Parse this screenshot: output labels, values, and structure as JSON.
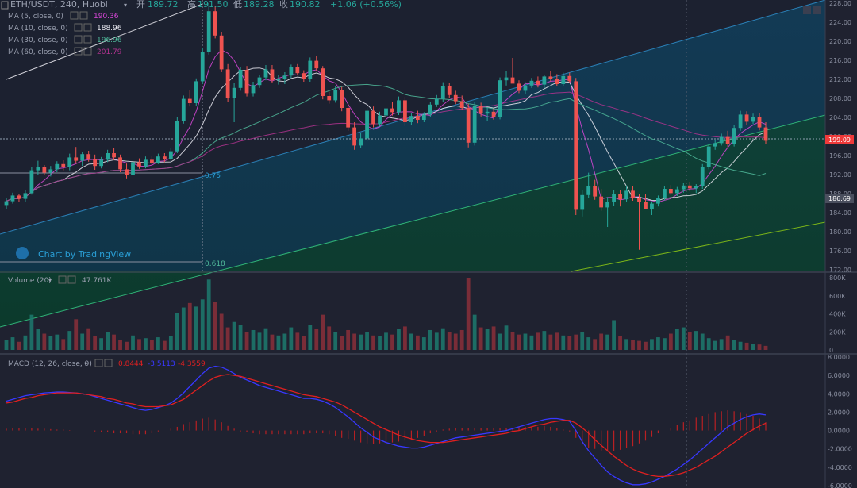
{
  "header": {
    "symbol": "ETH/USDT, 240, Huobi",
    "open_label": "开",
    "open": "189.72",
    "high_label": "高",
    "high": "191.50",
    "low_label": "低",
    "low": "189.28",
    "close_label": "收",
    "close": "190.82",
    "change": "+1.06 (+0.56%)"
  },
  "ma_legend": [
    {
      "label": "MA (5, close, 0)",
      "value": "190.36",
      "color": "#d946d9"
    },
    {
      "label": "MA (10, close, 0)",
      "value": "188.96",
      "color": "#e8e8f0"
    },
    {
      "label": "MA (30, close, 0)",
      "value": "196.96",
      "color": "#4fb89a"
    },
    {
      "label": "MA (60, close, 0)",
      "value": "201.79",
      "color": "#b0338f"
    }
  ],
  "volume_legend": {
    "label": "Volume (20)",
    "value": "47.761K"
  },
  "macd_legend": {
    "label": "MACD (12, 26, close, 9)",
    "v1": "0.8444",
    "v2": "-3.5113",
    "v3": "-4.3559"
  },
  "watermark": "Chart by TradingView",
  "price_badges": {
    "current": "199.09",
    "secondary": "186.69"
  },
  "colors": {
    "up": "#26a69a",
    "down": "#ef5350",
    "background": "#1f2230",
    "macd_line": "#3838ff",
    "signal_line": "#e02020"
  },
  "chart_data": [
    {
      "type": "candlestick",
      "symbol": "ETH/USDT",
      "interval": "240",
      "exchange": "Huobi",
      "y_ticks": [
        "228.00",
        "224.00",
        "220.00",
        "216.00",
        "212.00",
        "208.00",
        "204.00",
        "200.00",
        "196.00",
        "192.00",
        "188.00",
        "184.00",
        "180.00",
        "176.00",
        "172.00"
      ],
      "ylim": [
        172,
        228
      ],
      "fib_labels": [
        {
          "text": "0.75"
        },
        {
          "text": "0.618"
        }
      ],
      "candles": [
        [
          185.6,
          187.0,
          184.8,
          186.4
        ],
        [
          186.4,
          188.2,
          185.9,
          187.6
        ],
        [
          187.6,
          188.0,
          186.3,
          186.9
        ],
        [
          186.9,
          188.7,
          186.2,
          188.1
        ],
        [
          188.1,
          193.6,
          187.8,
          192.9
        ],
        [
          192.9,
          194.9,
          192.0,
          193.6
        ],
        [
          193.6,
          194.0,
          191.9,
          192.4
        ],
        [
          192.4,
          193.8,
          191.6,
          193.1
        ],
        [
          193.1,
          194.8,
          192.5,
          194.2
        ],
        [
          194.2,
          195.0,
          192.9,
          193.5
        ],
        [
          193.5,
          196.4,
          192.9,
          195.6
        ],
        [
          195.6,
          197.8,
          194.3,
          194.9
        ],
        [
          194.9,
          196.8,
          193.8,
          196.3
        ],
        [
          196.3,
          197.0,
          194.7,
          195.3
        ],
        [
          195.3,
          196.2,
          193.0,
          193.8
        ],
        [
          193.8,
          195.7,
          193.3,
          195.1
        ],
        [
          195.1,
          197.2,
          194.6,
          196.5
        ],
        [
          196.5,
          197.5,
          195.0,
          195.6
        ],
        [
          195.6,
          196.2,
          192.5,
          193.1
        ],
        [
          193.1,
          194.3,
          191.2,
          192.0
        ],
        [
          192.0,
          195.2,
          191.6,
          194.6
        ],
        [
          194.6,
          195.4,
          193.2,
          193.7
        ],
        [
          193.7,
          195.8,
          193.3,
          195.1
        ],
        [
          195.1,
          196.0,
          193.9,
          194.5
        ],
        [
          194.5,
          196.4,
          194.2,
          195.8
        ],
        [
          195.8,
          196.5,
          194.6,
          195.2
        ],
        [
          195.2,
          197.5,
          194.8,
          196.9
        ],
        [
          196.9,
          204.0,
          196.5,
          203.2
        ],
        [
          203.2,
          208.6,
          202.7,
          207.9
        ],
        [
          207.9,
          209.8,
          206.3,
          207.0
        ],
        [
          207.0,
          212.2,
          206.5,
          211.6
        ],
        [
          211.6,
          218.5,
          211.0,
          217.7
        ],
        [
          217.7,
          228.0,
          217.2,
          226.3
        ],
        [
          226.3,
          227.5,
          220.6,
          221.2
        ],
        [
          221.2,
          222.0,
          213.5,
          214.1
        ],
        [
          214.1,
          215.2,
          207.2,
          208.1
        ],
        [
          208.1,
          211.3,
          203.0,
          210.2
        ],
        [
          210.2,
          214.6,
          209.6,
          214.0
        ],
        [
          214.0,
          214.8,
          208.4,
          209.1
        ],
        [
          209.1,
          211.5,
          208.4,
          210.8
        ],
        [
          210.8,
          212.9,
          210.2,
          212.4
        ],
        [
          212.4,
          215.0,
          211.8,
          214.1
        ],
        [
          214.1,
          215.0,
          211.3,
          211.8
        ],
        [
          211.8,
          213.0,
          210.9,
          212.1
        ],
        [
          212.1,
          213.5,
          211.0,
          212.8
        ],
        [
          212.8,
          215.1,
          212.3,
          214.5
        ],
        [
          214.5,
          215.2,
          212.9,
          213.3
        ],
        [
          213.3,
          213.9,
          211.5,
          212.1
        ],
        [
          212.1,
          216.6,
          211.5,
          215.9
        ],
        [
          215.9,
          216.9,
          213.7,
          214.3
        ],
        [
          214.3,
          214.8,
          207.8,
          208.5
        ],
        [
          208.5,
          209.4,
          206.9,
          207.6
        ],
        [
          207.6,
          210.5,
          207.1,
          209.8
        ],
        [
          209.8,
          210.4,
          205.3,
          206.0
        ],
        [
          206.0,
          206.9,
          201.2,
          201.9
        ],
        [
          201.9,
          203.0,
          197.2,
          198.1
        ],
        [
          198.1,
          200.8,
          197.5,
          199.6
        ],
        [
          199.6,
          206.1,
          199.0,
          205.4
        ],
        [
          205.4,
          206.3,
          201.9,
          202.6
        ],
        [
          202.6,
          205.2,
          202.1,
          204.4
        ],
        [
          204.4,
          206.7,
          203.9,
          205.9
        ],
        [
          205.9,
          207.3,
          204.4,
          205.1
        ],
        [
          205.1,
          208.4,
          204.5,
          207.6
        ],
        [
          207.6,
          208.3,
          202.2,
          203.0
        ],
        [
          203.0,
          205.0,
          202.4,
          204.3
        ],
        [
          204.3,
          205.4,
          202.8,
          203.5
        ],
        [
          203.5,
          205.1,
          203.0,
          204.6
        ],
        [
          204.6,
          207.3,
          204.1,
          206.7
        ],
        [
          206.7,
          208.7,
          206.2,
          207.9
        ],
        [
          207.9,
          211.4,
          207.3,
          210.6
        ],
        [
          210.6,
          211.2,
          208.0,
          208.7
        ],
        [
          208.7,
          209.6,
          206.8,
          207.4
        ],
        [
          207.4,
          208.6,
          205.5,
          206.0
        ],
        [
          206.0,
          206.9,
          197.7,
          198.7
        ],
        [
          198.7,
          207.3,
          198.1,
          206.4
        ],
        [
          206.4,
          207.1,
          204.2,
          204.8
        ],
        [
          204.8,
          206.0,
          203.3,
          205.2
        ],
        [
          205.2,
          205.9,
          203.5,
          204.1
        ],
        [
          204.1,
          212.4,
          203.6,
          211.8
        ],
        [
          211.8,
          213.7,
          210.7,
          212.4
        ],
        [
          212.4,
          216.5,
          211.6,
          211.1
        ],
        [
          211.1,
          211.8,
          209.1,
          209.6
        ],
        [
          209.6,
          211.4,
          209.0,
          210.7
        ],
        [
          210.7,
          212.3,
          210.2,
          211.7
        ],
        [
          211.7,
          212.6,
          210.3,
          210.9
        ],
        [
          210.9,
          213.0,
          210.1,
          212.6
        ],
        [
          212.6,
          213.8,
          211.6,
          212.1
        ],
        [
          212.1,
          213.1,
          210.5,
          211.0
        ],
        [
          211.0,
          213.4,
          210.6,
          212.7
        ],
        [
          212.7,
          213.4,
          211.2,
          211.6
        ],
        [
          211.6,
          212.3,
          183.5,
          184.6
        ],
        [
          184.6,
          188.7,
          183.2,
          187.7
        ],
        [
          187.7,
          192.4,
          187.1,
          189.5
        ],
        [
          189.5,
          190.9,
          186.7,
          187.4
        ],
        [
          187.4,
          189.0,
          184.4,
          185.1
        ],
        [
          185.1,
          187.3,
          181.0,
          186.2
        ],
        [
          186.2,
          188.8,
          185.5,
          187.9
        ],
        [
          187.9,
          188.7,
          185.3,
          186.8
        ],
        [
          186.8,
          189.7,
          186.3,
          188.6
        ],
        [
          188.6,
          189.6,
          186.5,
          187.1
        ],
        [
          187.1,
          187.9,
          176.2,
          186.3
        ],
        [
          186.3,
          187.9,
          185.0,
          184.7
        ],
        [
          184.7,
          186.2,
          183.5,
          185.9
        ],
        [
          185.9,
          187.6,
          185.3,
          187.1
        ],
        [
          187.1,
          189.6,
          186.6,
          189.0
        ],
        [
          189.0,
          189.8,
          187.7,
          188.1
        ],
        [
          188.1,
          189.4,
          187.5,
          188.9
        ],
        [
          188.9,
          190.3,
          188.2,
          189.7
        ],
        [
          189.7,
          190.5,
          188.5,
          189.1
        ],
        [
          189.1,
          190.0,
          188.1,
          189.5
        ],
        [
          189.5,
          194.2,
          189.0,
          193.6
        ],
        [
          193.6,
          198.4,
          193.1,
          197.9
        ],
        [
          197.9,
          199.3,
          197.2,
          198.6
        ],
        [
          198.6,
          200.6,
          198.1,
          199.9
        ],
        [
          199.9,
          201.2,
          197.8,
          198.4
        ],
        [
          198.4,
          202.4,
          197.9,
          201.8
        ],
        [
          201.8,
          205.4,
          201.2,
          204.6
        ],
        [
          204.6,
          205.3,
          202.5,
          203.1
        ],
        [
          203.1,
          204.8,
          202.6,
          204.1
        ],
        [
          204.1,
          205.0,
          201.3,
          201.9
        ],
        [
          201.9,
          203.0,
          198.5,
          199.1
        ]
      ]
    },
    {
      "type": "bar",
      "title": "Volume (20)",
      "y_ticks": [
        "800K",
        "600K",
        "400K",
        "200K",
        "0"
      ],
      "ylim": [
        0,
        800
      ],
      "values": [
        110,
        140,
        90,
        160,
        390,
        230,
        180,
        150,
        170,
        120,
        210,
        340,
        180,
        240,
        150,
        130,
        200,
        170,
        110,
        90,
        160,
        120,
        130,
        110,
        140,
        100,
        150,
        410,
        470,
        520,
        480,
        560,
        780,
        530,
        400,
        250,
        310,
        280,
        200,
        220,
        190,
        240,
        170,
        160,
        180,
        250,
        190,
        150,
        280,
        230,
        390,
        260,
        200,
        150,
        220,
        180,
        170,
        200,
        160,
        150,
        190,
        170,
        230,
        260,
        180,
        160,
        140,
        220,
        190,
        240,
        200,
        180,
        220,
        800,
        390,
        250,
        230,
        260,
        180,
        270,
        200,
        170,
        180,
        160,
        190,
        210,
        170,
        190,
        160,
        150,
        170,
        200,
        140,
        120,
        180,
        170,
        330,
        150,
        120,
        110,
        100,
        90,
        120,
        140,
        130,
        180,
        230,
        250,
        200,
        210,
        180,
        130,
        100,
        120,
        160,
        110,
        90,
        80,
        70,
        60,
        45
      ],
      "colors_by_candle_direction": true
    },
    {
      "type": "line+histogram",
      "title": "MACD (12, 26, close, 9)",
      "y_ticks": [
        "8.0000",
        "6.0000",
        "4.0000",
        "2.0000",
        "0.0000",
        "-2.0000",
        "-4.0000",
        "-6.0000"
      ],
      "ylim": [
        -6,
        8
      ],
      "macd": [
        3.2,
        3.4,
        3.6,
        3.8,
        3.9,
        4.0,
        4.1,
        4.15,
        4.2,
        4.2,
        4.15,
        4.1,
        4.0,
        3.9,
        3.7,
        3.5,
        3.3,
        3.1,
        2.9,
        2.7,
        2.5,
        2.3,
        2.2,
        2.3,
        2.5,
        2.7,
        3.0,
        3.5,
        4.1,
        4.8,
        5.5,
        6.2,
        6.8,
        7.0,
        6.9,
        6.6,
        6.2,
        5.8,
        5.5,
        5.2,
        4.9,
        4.7,
        4.5,
        4.3,
        4.1,
        3.9,
        3.7,
        3.5,
        3.5,
        3.4,
        3.2,
        2.9,
        2.5,
        2.0,
        1.5,
        0.9,
        0.3,
        -0.2,
        -0.7,
        -1.0,
        -1.3,
        -1.5,
        -1.7,
        -1.8,
        -1.9,
        -1.9,
        -1.8,
        -1.6,
        -1.4,
        -1.2,
        -1.0,
        -0.8,
        -0.7,
        -0.6,
        -0.5,
        -0.4,
        -0.3,
        -0.2,
        -0.1,
        0.0,
        0.2,
        0.4,
        0.6,
        0.8,
        1.0,
        1.2,
        1.3,
        1.3,
        1.2,
        1.0,
        0.0,
        -1.2,
        -2.2,
        -3.0,
        -3.8,
        -4.5,
        -5.0,
        -5.4,
        -5.7,
        -5.9,
        -5.9,
        -5.8,
        -5.6,
        -5.3,
        -5.0,
        -4.6,
        -4.2,
        -3.7,
        -3.2,
        -2.6,
        -2.0,
        -1.4,
        -0.8,
        -0.2,
        0.4,
        0.8,
        1.2,
        1.5,
        1.7,
        1.8,
        1.7
      ],
      "signal": [
        3.0,
        3.1,
        3.3,
        3.5,
        3.6,
        3.8,
        3.9,
        4.0,
        4.1,
        4.1,
        4.1,
        4.1,
        4.0,
        3.9,
        3.8,
        3.7,
        3.5,
        3.4,
        3.2,
        3.0,
        2.9,
        2.7,
        2.6,
        2.6,
        2.6,
        2.7,
        2.8,
        3.1,
        3.4,
        3.9,
        4.4,
        4.9,
        5.4,
        5.8,
        6.0,
        6.1,
        6.0,
        5.9,
        5.7,
        5.5,
        5.3,
        5.1,
        4.9,
        4.7,
        4.5,
        4.3,
        4.1,
        3.9,
        3.8,
        3.7,
        3.5,
        3.3,
        3.1,
        2.8,
        2.4,
        2.0,
        1.6,
        1.2,
        0.8,
        0.4,
        0.1,
        -0.2,
        -0.5,
        -0.7,
        -0.9,
        -1.1,
        -1.2,
        -1.3,
        -1.3,
        -1.3,
        -1.2,
        -1.1,
        -1.0,
        -0.9,
        -0.8,
        -0.7,
        -0.6,
        -0.5,
        -0.4,
        -0.3,
        -0.1,
        0.0,
        0.2,
        0.4,
        0.6,
        0.7,
        0.9,
        1.0,
        1.1,
        1.1,
        0.8,
        0.3,
        -0.3,
        -1.0,
        -1.6,
        -2.2,
        -2.8,
        -3.3,
        -3.8,
        -4.2,
        -4.5,
        -4.7,
        -4.9,
        -5.0,
        -5.0,
        -4.9,
        -4.8,
        -4.6,
        -4.3,
        -4.0,
        -3.6,
        -3.2,
        -2.8,
        -2.3,
        -1.8,
        -1.3,
        -0.8,
        -0.3,
        0.1,
        0.5,
        0.8
      ]
    }
  ]
}
